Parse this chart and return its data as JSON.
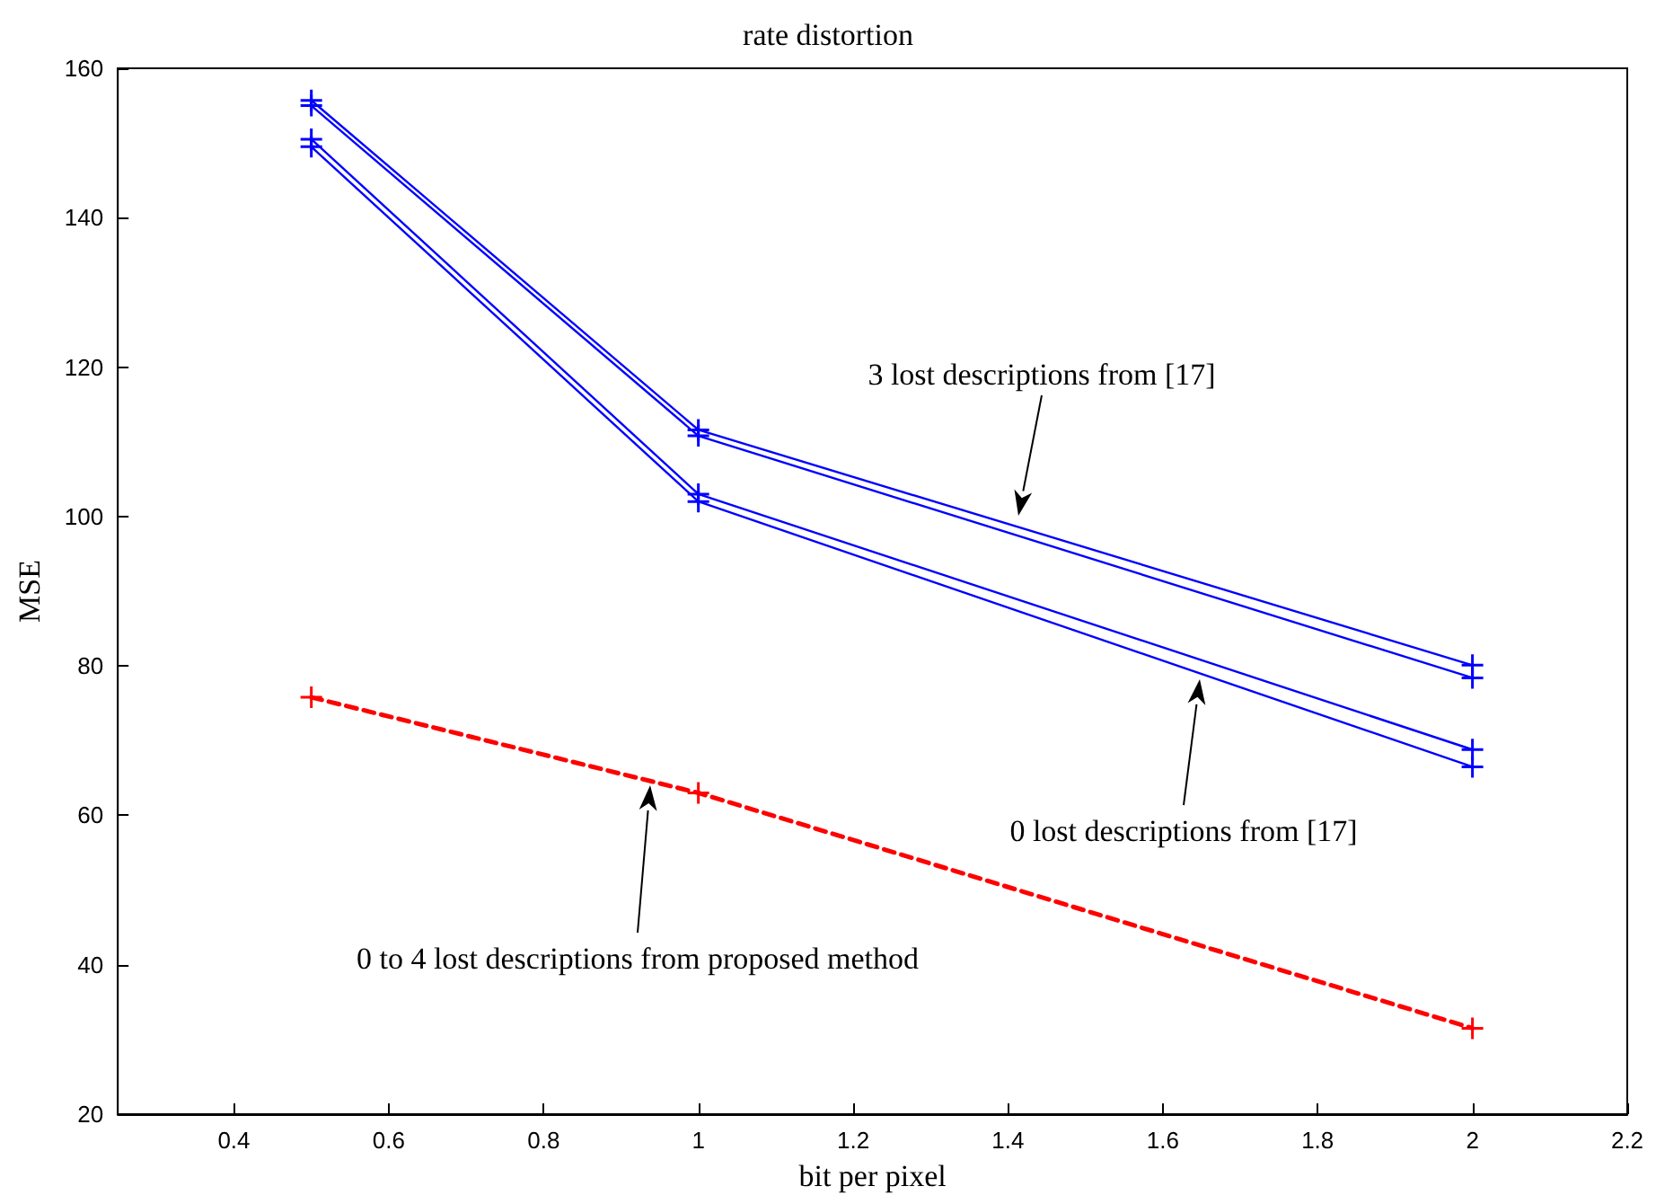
{
  "chart_data": {
    "type": "line",
    "title": "rate distortion",
    "xlabel": "bit per pixel",
    "ylabel": "MSE",
    "x": [
      0.5,
      1,
      2
    ],
    "series": [
      {
        "color": "#0000ff",
        "values": [
          155.7,
          111.6,
          80.1
        ]
      },
      {
        "color": "#0000ff",
        "values": [
          155,
          110.8,
          78.4
        ]
      },
      {
        "color": "#0000ff",
        "values": [
          150.5,
          103,
          68.8
        ]
      },
      {
        "color": "#0000ff",
        "values": [
          149.5,
          102,
          66.5
        ]
      },
      {
        "color": "#ff0000",
        "values": [
          75.8,
          63,
          31.5
        ],
        "line_style": "dashed"
      }
    ],
    "marker": "cross",
    "line_style": "solid",
    "grid": false,
    "xlim": [
      0.25,
      2.2
    ],
    "xticks": [
      0.4,
      0.6,
      0.8,
      1,
      1.2,
      1.4,
      1.6,
      1.8,
      2,
      2.2
    ],
    "ylim": [
      20,
      160
    ],
    "yticks": [
      20,
      40,
      60,
      80,
      100,
      120,
      140,
      160
    ],
    "annotations": [
      "3 lost descriptions from [17]",
      "0 lost descriptions from [17]",
      "0 to 4 lost descriptions from proposed method"
    ]
  }
}
